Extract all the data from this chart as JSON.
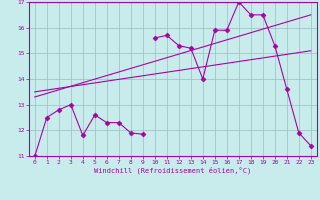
{
  "xlabel": "Windchill (Refroidissement éolien,°C)",
  "xlim": [
    -0.5,
    23.5
  ],
  "ylim": [
    11,
    17
  ],
  "xticks": [
    0,
    1,
    2,
    3,
    4,
    5,
    6,
    7,
    8,
    9,
    10,
    11,
    12,
    13,
    14,
    15,
    16,
    17,
    18,
    19,
    20,
    21,
    22,
    23
  ],
  "yticks": [
    11,
    12,
    13,
    14,
    15,
    16,
    17
  ],
  "background_color": "#c8ecec",
  "line_color": "#aa00aa",
  "grid_color": "#9bbfbf",
  "figsize": [
    3.2,
    2.0
  ],
  "dpi": 100,
  "series": [
    {
      "x": [
        0,
        1,
        2,
        3,
        4,
        5,
        6,
        7,
        8,
        9
      ],
      "y": [
        11.0,
        12.5,
        12.8,
        13.0,
        11.8,
        12.6,
        12.3,
        12.3,
        11.9,
        11.85
      ],
      "marker": "D",
      "markersize": 2.5
    },
    {
      "x": [
        10,
        11,
        12,
        13,
        14,
        15,
        16,
        17,
        18,
        19,
        20,
        21,
        22,
        23
      ],
      "y": [
        15.6,
        15.7,
        15.3,
        15.2,
        14.0,
        15.9,
        15.9,
        17.0,
        16.5,
        16.5,
        15.3,
        13.6,
        11.9,
        11.4
      ],
      "marker": "D",
      "markersize": 2.5
    },
    {
      "x": [
        0,
        23
      ],
      "y": [
        13.5,
        15.1
      ],
      "marker": null,
      "markersize": 0
    },
    {
      "x": [
        0,
        23
      ],
      "y": [
        13.3,
        16.5
      ],
      "marker": null,
      "markersize": 0
    }
  ]
}
